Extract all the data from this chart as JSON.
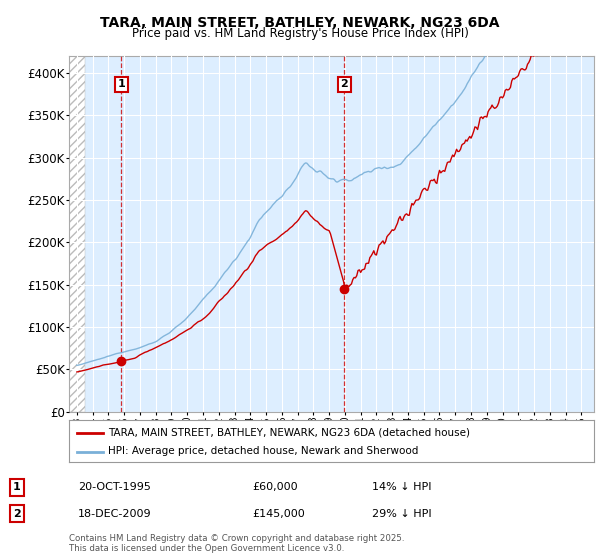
{
  "title_line1": "TARA, MAIN STREET, BATHLEY, NEWARK, NG23 6DA",
  "title_line2": "Price paid vs. HM Land Registry's House Price Index (HPI)",
  "bg_color": "#ffffff",
  "plot_bg_color": "#ddeeff",
  "grid_color": "#ffffff",
  "line_hpi_color": "#7ab0d8",
  "line_price_color": "#cc0000",
  "sale1_date_num": 1995.81,
  "sale1_price": 60000,
  "sale2_date_num": 2009.96,
  "sale2_price": 145000,
  "legend_entry1": "TARA, MAIN STREET, BATHLEY, NEWARK, NG23 6DA (detached house)",
  "legend_entry2": "HPI: Average price, detached house, Newark and Sherwood",
  "footnote": "Contains HM Land Registry data © Crown copyright and database right 2025.\nThis data is licensed under the Open Government Licence v3.0.",
  "ylim": [
    0,
    420000
  ],
  "yticks": [
    0,
    50000,
    100000,
    150000,
    200000,
    250000,
    300000,
    350000,
    400000
  ],
  "ytick_labels": [
    "£0",
    "£50K",
    "£100K",
    "£150K",
    "£200K",
    "£250K",
    "£300K",
    "£350K",
    "£400K"
  ],
  "xlim_start": 1992.5,
  "xlim_end": 2025.8,
  "hatch_end": 1993.5
}
